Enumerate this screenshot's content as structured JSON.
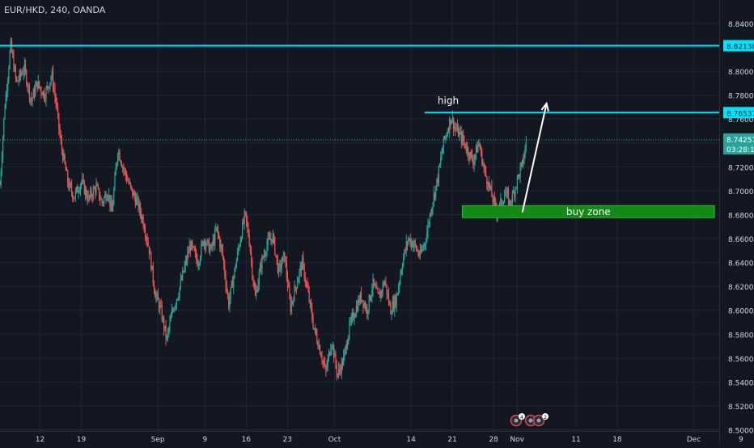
{
  "header": {
    "symbol": "EUR/HKD, 240, OANDA"
  },
  "chart_data": {
    "type": "candlestick",
    "title": "EUR/HKD, 240, OANDA",
    "y_ticks": [
      "8.84000",
      "8.82000",
      "8.80000",
      "8.78000",
      "8.76000",
      "8.74000",
      "8.72000",
      "8.70000",
      "8.68000",
      "8.66000",
      "8.64000",
      "8.62000",
      "8.60000",
      "8.58000",
      "8.56000",
      "8.54000",
      "8.52000",
      "8.50000"
    ],
    "ylim": [
      8.5,
      8.848
    ],
    "x_ticks": [
      {
        "label": "12",
        "day": 12
      },
      {
        "label": "19",
        "day": 19
      },
      {
        "label": "Sep",
        "day": 32
      },
      {
        "label": "9",
        "day": 40
      },
      {
        "label": "16",
        "day": 47
      },
      {
        "label": "23",
        "day": 54
      },
      {
        "label": "Oct",
        "day": 62
      },
      {
        "label": "14",
        "day": 75
      },
      {
        "label": "21",
        "day": 82
      },
      {
        "label": "28",
        "day": 89
      },
      {
        "label": "Nov",
        "day": 93
      },
      {
        "label": "11",
        "day": 103
      },
      {
        "label": "18",
        "day": 110
      },
      {
        "label": "Dec",
        "day": 123
      },
      {
        "label": "9",
        "day": 131
      }
    ],
    "xlim_days": [
      5.2,
      132.8
    ],
    "price_path": [
      [
        5.2,
        8.705
      ],
      [
        6.0,
        8.77
      ],
      [
        6.6,
        8.8
      ],
      [
        7.0,
        8.822
      ],
      [
        8.0,
        8.79
      ],
      [
        9.3,
        8.803
      ],
      [
        10.5,
        8.775
      ],
      [
        11.5,
        8.79
      ],
      [
        12.8,
        8.78
      ],
      [
        14.0,
        8.797
      ],
      [
        14.8,
        8.77
      ],
      [
        15.5,
        8.74
      ],
      [
        16.8,
        8.705
      ],
      [
        17.8,
        8.695
      ],
      [
        19.0,
        8.708
      ],
      [
        20.2,
        8.693
      ],
      [
        21.5,
        8.703
      ],
      [
        22.5,
        8.69
      ],
      [
        23.5,
        8.7
      ],
      [
        24.2,
        8.682
      ],
      [
        25.2,
        8.735
      ],
      [
        26.2,
        8.718
      ],
      [
        27.5,
        8.7
      ],
      [
        28.5,
        8.69
      ],
      [
        29.5,
        8.675
      ],
      [
        30.5,
        8.652
      ],
      [
        31.5,
        8.615
      ],
      [
        32.5,
        8.6
      ],
      [
        33.5,
        8.575
      ],
      [
        34.5,
        8.6
      ],
      [
        35.5,
        8.615
      ],
      [
        36.5,
        8.635
      ],
      [
        37.5,
        8.655
      ],
      [
        38.8,
        8.64
      ],
      [
        39.8,
        8.66
      ],
      [
        41.0,
        8.65
      ],
      [
        42.0,
        8.668
      ],
      [
        43.0,
        8.646
      ],
      [
        44.0,
        8.605
      ],
      [
        45.0,
        8.632
      ],
      [
        46.0,
        8.66
      ],
      [
        46.8,
        8.68
      ],
      [
        47.5,
        8.66
      ],
      [
        48.5,
        8.61
      ],
      [
        49.5,
        8.638
      ],
      [
        50.5,
        8.655
      ],
      [
        51.5,
        8.662
      ],
      [
        52.5,
        8.632
      ],
      [
        53.5,
        8.646
      ],
      [
        54.5,
        8.602
      ],
      [
        55.5,
        8.622
      ],
      [
        56.5,
        8.64
      ],
      [
        57.5,
        8.614
      ],
      [
        58.5,
        8.585
      ],
      [
        59.5,
        8.568
      ],
      [
        60.5,
        8.548
      ],
      [
        61.5,
        8.575
      ],
      [
        62.5,
        8.546
      ],
      [
        63.5,
        8.558
      ],
      [
        64.5,
        8.585
      ],
      [
        65.5,
        8.6
      ],
      [
        66.5,
        8.612
      ],
      [
        67.5,
        8.6
      ],
      [
        68.5,
        8.622
      ],
      [
        69.5,
        8.61
      ],
      [
        70.5,
        8.625
      ],
      [
        71.5,
        8.6
      ],
      [
        72.5,
        8.61
      ],
      [
        73.5,
        8.64
      ],
      [
        74.5,
        8.66
      ],
      [
        75.5,
        8.655
      ],
      [
        76.5,
        8.645
      ],
      [
        77.5,
        8.66
      ],
      [
        78.5,
        8.688
      ],
      [
        79.5,
        8.71
      ],
      [
        80.5,
        8.74
      ],
      [
        81.0,
        8.748
      ],
      [
        81.8,
        8.762
      ],
      [
        82.5,
        8.752
      ],
      [
        83.5,
        8.745
      ],
      [
        84.5,
        8.735
      ],
      [
        85.5,
        8.725
      ],
      [
        86.5,
        8.74
      ],
      [
        87.5,
        8.715
      ],
      [
        88.2,
        8.705
      ],
      [
        89.0,
        8.69
      ],
      [
        89.6,
        8.682
      ],
      [
        90.3,
        8.69
      ],
      [
        91.0,
        8.698
      ],
      [
        91.8,
        8.688
      ],
      [
        92.5,
        8.7
      ],
      [
        93.2,
        8.712
      ],
      [
        94.0,
        8.724
      ],
      [
        94.6,
        8.743
      ]
    ],
    "last_price": "8.74257",
    "countdown": "03:28:18",
    "levels": [
      {
        "value": 8.82138,
        "label": "8.82138",
        "color": "#00e5ff",
        "width": 2,
        "from_day": 5.2,
        "to_day": 132.8
      },
      {
        "value": 8.76537,
        "label": "8.76537",
        "color": "#00e5ff",
        "width": 2,
        "from_day": 77.3,
        "to_day": 132.8
      }
    ],
    "annotations": [
      {
        "text": "high",
        "day": 81.3,
        "price": 8.7725
      },
      {
        "text": "buy zone",
        "day1": 83.7,
        "day2": 126.5,
        "top": 8.6875,
        "bottom": 8.6775,
        "fill": "#138a17"
      }
    ],
    "arrow": {
      "from_day": 93.9,
      "from_price": 8.682,
      "to_day": 98.0,
      "to_price": 8.773
    },
    "event_badges": [
      "4",
      "2"
    ],
    "colors": {
      "up": "#26a69a",
      "down": "#ef5350",
      "background": "#131722",
      "grid": "#232733",
      "axis_text": "#d1d4dc",
      "level": "#00e5ff"
    }
  }
}
